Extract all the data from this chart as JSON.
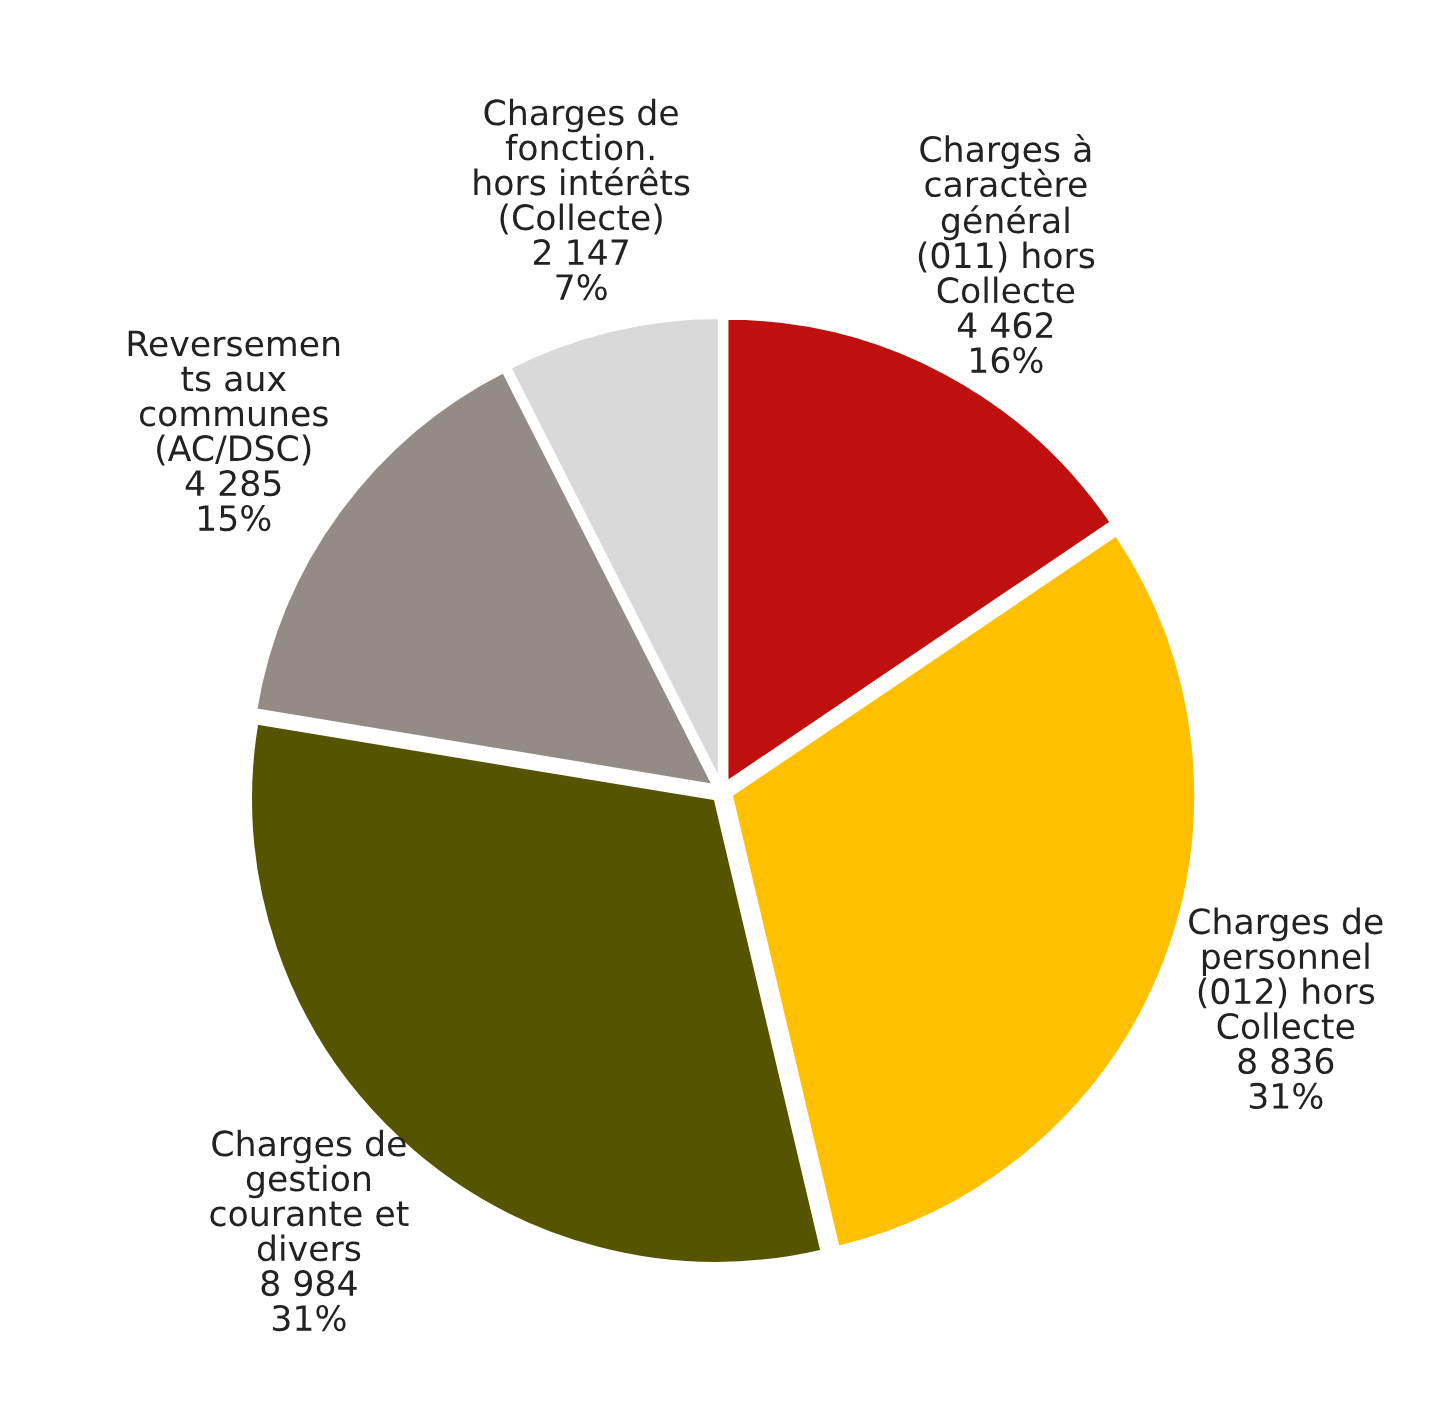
{
  "chart_data": {
    "type": "pie",
    "categories": [
      "Charges à\ncaractère\ngénéral\n(011) hors\nCollecte",
      "Charges de\npersonnel\n(012) hors\nCollecte",
      "Charges de\ngestion\ncourante et\ndivers",
      "Reversemen\nts aux\ncommunes\n(AC/DSC)",
      "Charges de\nfonction.\nhors intérêts\n(Collecte)"
    ],
    "values": [
      4462,
      8836,
      8984,
      4285,
      2147
    ],
    "value_labels": [
      "4 462\n16%",
      "8 836\n31%",
      "8 984\n31%",
      "4 285\n15%",
      "2 147\n7%"
    ],
    "colors": [
      "#c00f0f",
      "#ffc000",
      "#555500",
      "#958b86",
      "#d9d9d9"
    ]
  }
}
